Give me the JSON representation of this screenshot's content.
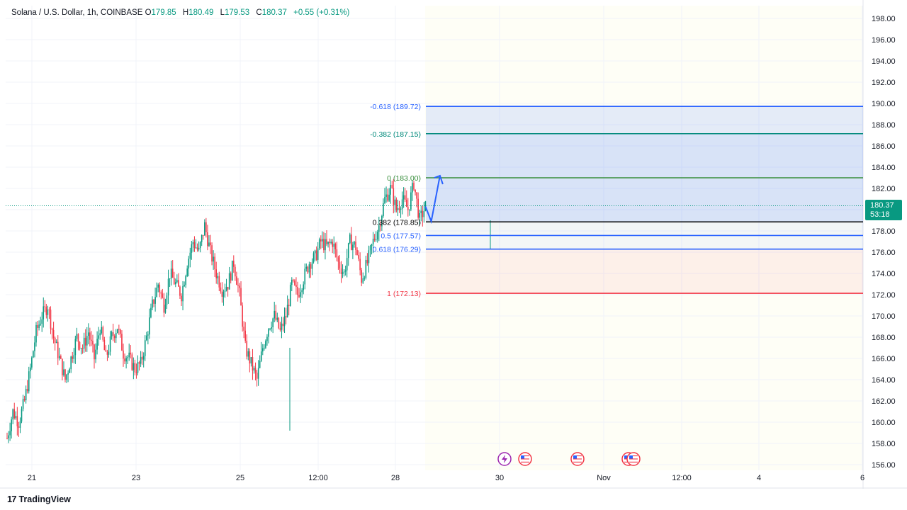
{
  "header": {
    "symbol": "Solana / U.S. Dollar, 1h, COINBASE",
    "open_label": "O",
    "open": "179.85",
    "high_label": "H",
    "high": "180.49",
    "low_label": "L",
    "low": "179.53",
    "close_label": "C",
    "close": "180.37",
    "change": "+0.55 (+0.31%)"
  },
  "price_tag": {
    "price": "180.37",
    "countdown": "53:18"
  },
  "brand": {
    "logo": "17",
    "name": "TradingView"
  },
  "colors": {
    "up": "#089981",
    "down": "#f23645",
    "fib_top": "#2962ff",
    "fib_382ext": "#00897b",
    "fib_0": "#388e3c",
    "fib_382": "#000000",
    "fib_05": "#2962ff",
    "fib_1": "#f23645",
    "arrow": "#2962ff",
    "last_price": "#089981"
  },
  "chart_data": {
    "type": "candlestick",
    "ylim": [
      155,
      199
    ],
    "y_ticks": [
      "198.00",
      "196.00",
      "194.00",
      "192.00",
      "190.00",
      "188.00",
      "186.00",
      "184.00",
      "182.00",
      "180.00",
      "178.00",
      "176.00",
      "174.00",
      "172.00",
      "170.00",
      "168.00",
      "166.00",
      "164.00",
      "162.00",
      "160.00",
      "158.00",
      "156.00"
    ],
    "x_ticks": [
      "21",
      "23",
      "25",
      "12:00",
      "28",
      "30",
      "Nov",
      "12:00",
      "4",
      "6"
    ],
    "grid": true,
    "last_price": 180.37,
    "fib_levels": [
      {
        "label": "-0.618 (189.72)",
        "value": 189.72,
        "color": "#2962ff"
      },
      {
        "label": "-0.382 (187.15)",
        "value": 187.15,
        "color": "#00897b"
      },
      {
        "label": "0 (183.00)",
        "value": 183.0,
        "color": "#388e3c"
      },
      {
        "label": "0.382 (178.85)",
        "value": 178.85,
        "color": "#000000"
      },
      {
        "label": "0.5 (177.57)",
        "value": 177.57,
        "color": "#2962ff"
      },
      {
        "label": "0.618 (176.29)",
        "value": 176.29,
        "color": "#2962ff"
      },
      {
        "label": "1 (172.13)",
        "value": 172.13,
        "color": "#f23645"
      }
    ],
    "price_path": [
      [
        0,
        158.5
      ],
      [
        4,
        161
      ],
      [
        8,
        160
      ],
      [
        12,
        162
      ],
      [
        16,
        165
      ],
      [
        20,
        168.5
      ],
      [
        24,
        170
      ],
      [
        28,
        171
      ],
      [
        32,
        168
      ],
      [
        36,
        166
      ],
      [
        40,
        164
      ],
      [
        44,
        166
      ],
      [
        48,
        168
      ],
      [
        52,
        167
      ],
      [
        56,
        168.5
      ],
      [
        60,
        166
      ],
      [
        64,
        169
      ],
      [
        68,
        166
      ],
      [
        72,
        168
      ],
      [
        76,
        169
      ],
      [
        80,
        166.5
      ],
      [
        84,
        166
      ],
      [
        88,
        165
      ],
      [
        92,
        165.5
      ],
      [
        96,
        168
      ],
      [
        100,
        171
      ],
      [
        104,
        173
      ],
      [
        108,
        171
      ],
      [
        112,
        174
      ],
      [
        116,
        173
      ],
      [
        120,
        172
      ],
      [
        124,
        175
      ],
      [
        128,
        177
      ],
      [
        132,
        176
      ],
      [
        136,
        178.5
      ],
      [
        140,
        176
      ],
      [
        144,
        174
      ],
      [
        148,
        172.5
      ],
      [
        152,
        173
      ],
      [
        156,
        175
      ],
      [
        160,
        172
      ],
      [
        164,
        167
      ],
      [
        168,
        165.5
      ],
      [
        172,
        164
      ],
      [
        176,
        167
      ],
      [
        180,
        169
      ],
      [
        184,
        170
      ],
      [
        188,
        168.5
      ],
      [
        192,
        170
      ],
      [
        196,
        173
      ],
      [
        200,
        172
      ],
      [
        204,
        173.5
      ],
      [
        208,
        175
      ],
      [
        212,
        175.5
      ],
      [
        216,
        177
      ],
      [
        220,
        176.5
      ],
      [
        224,
        177
      ],
      [
        228,
        175
      ],
      [
        232,
        174
      ],
      [
        236,
        177
      ],
      [
        240,
        176.5
      ],
      [
        244,
        173.5
      ],
      [
        248,
        175
      ],
      [
        252,
        177
      ],
      [
        256,
        178.5
      ],
      [
        260,
        181
      ],
      [
        264,
        182
      ],
      [
        268,
        180
      ],
      [
        272,
        181
      ],
      [
        276,
        180
      ],
      [
        280,
        182.5
      ],
      [
        284,
        179
      ],
      [
        288,
        180.3
      ]
    ],
    "projection": [
      [
        288,
        180.3
      ],
      [
        292,
        178.9
      ],
      [
        298,
        183.2
      ]
    ],
    "events": [
      "lightning-icon",
      "us-flag-icon",
      "us-flag-icon",
      "us-flag-icon",
      "us-flag-icon"
    ]
  }
}
